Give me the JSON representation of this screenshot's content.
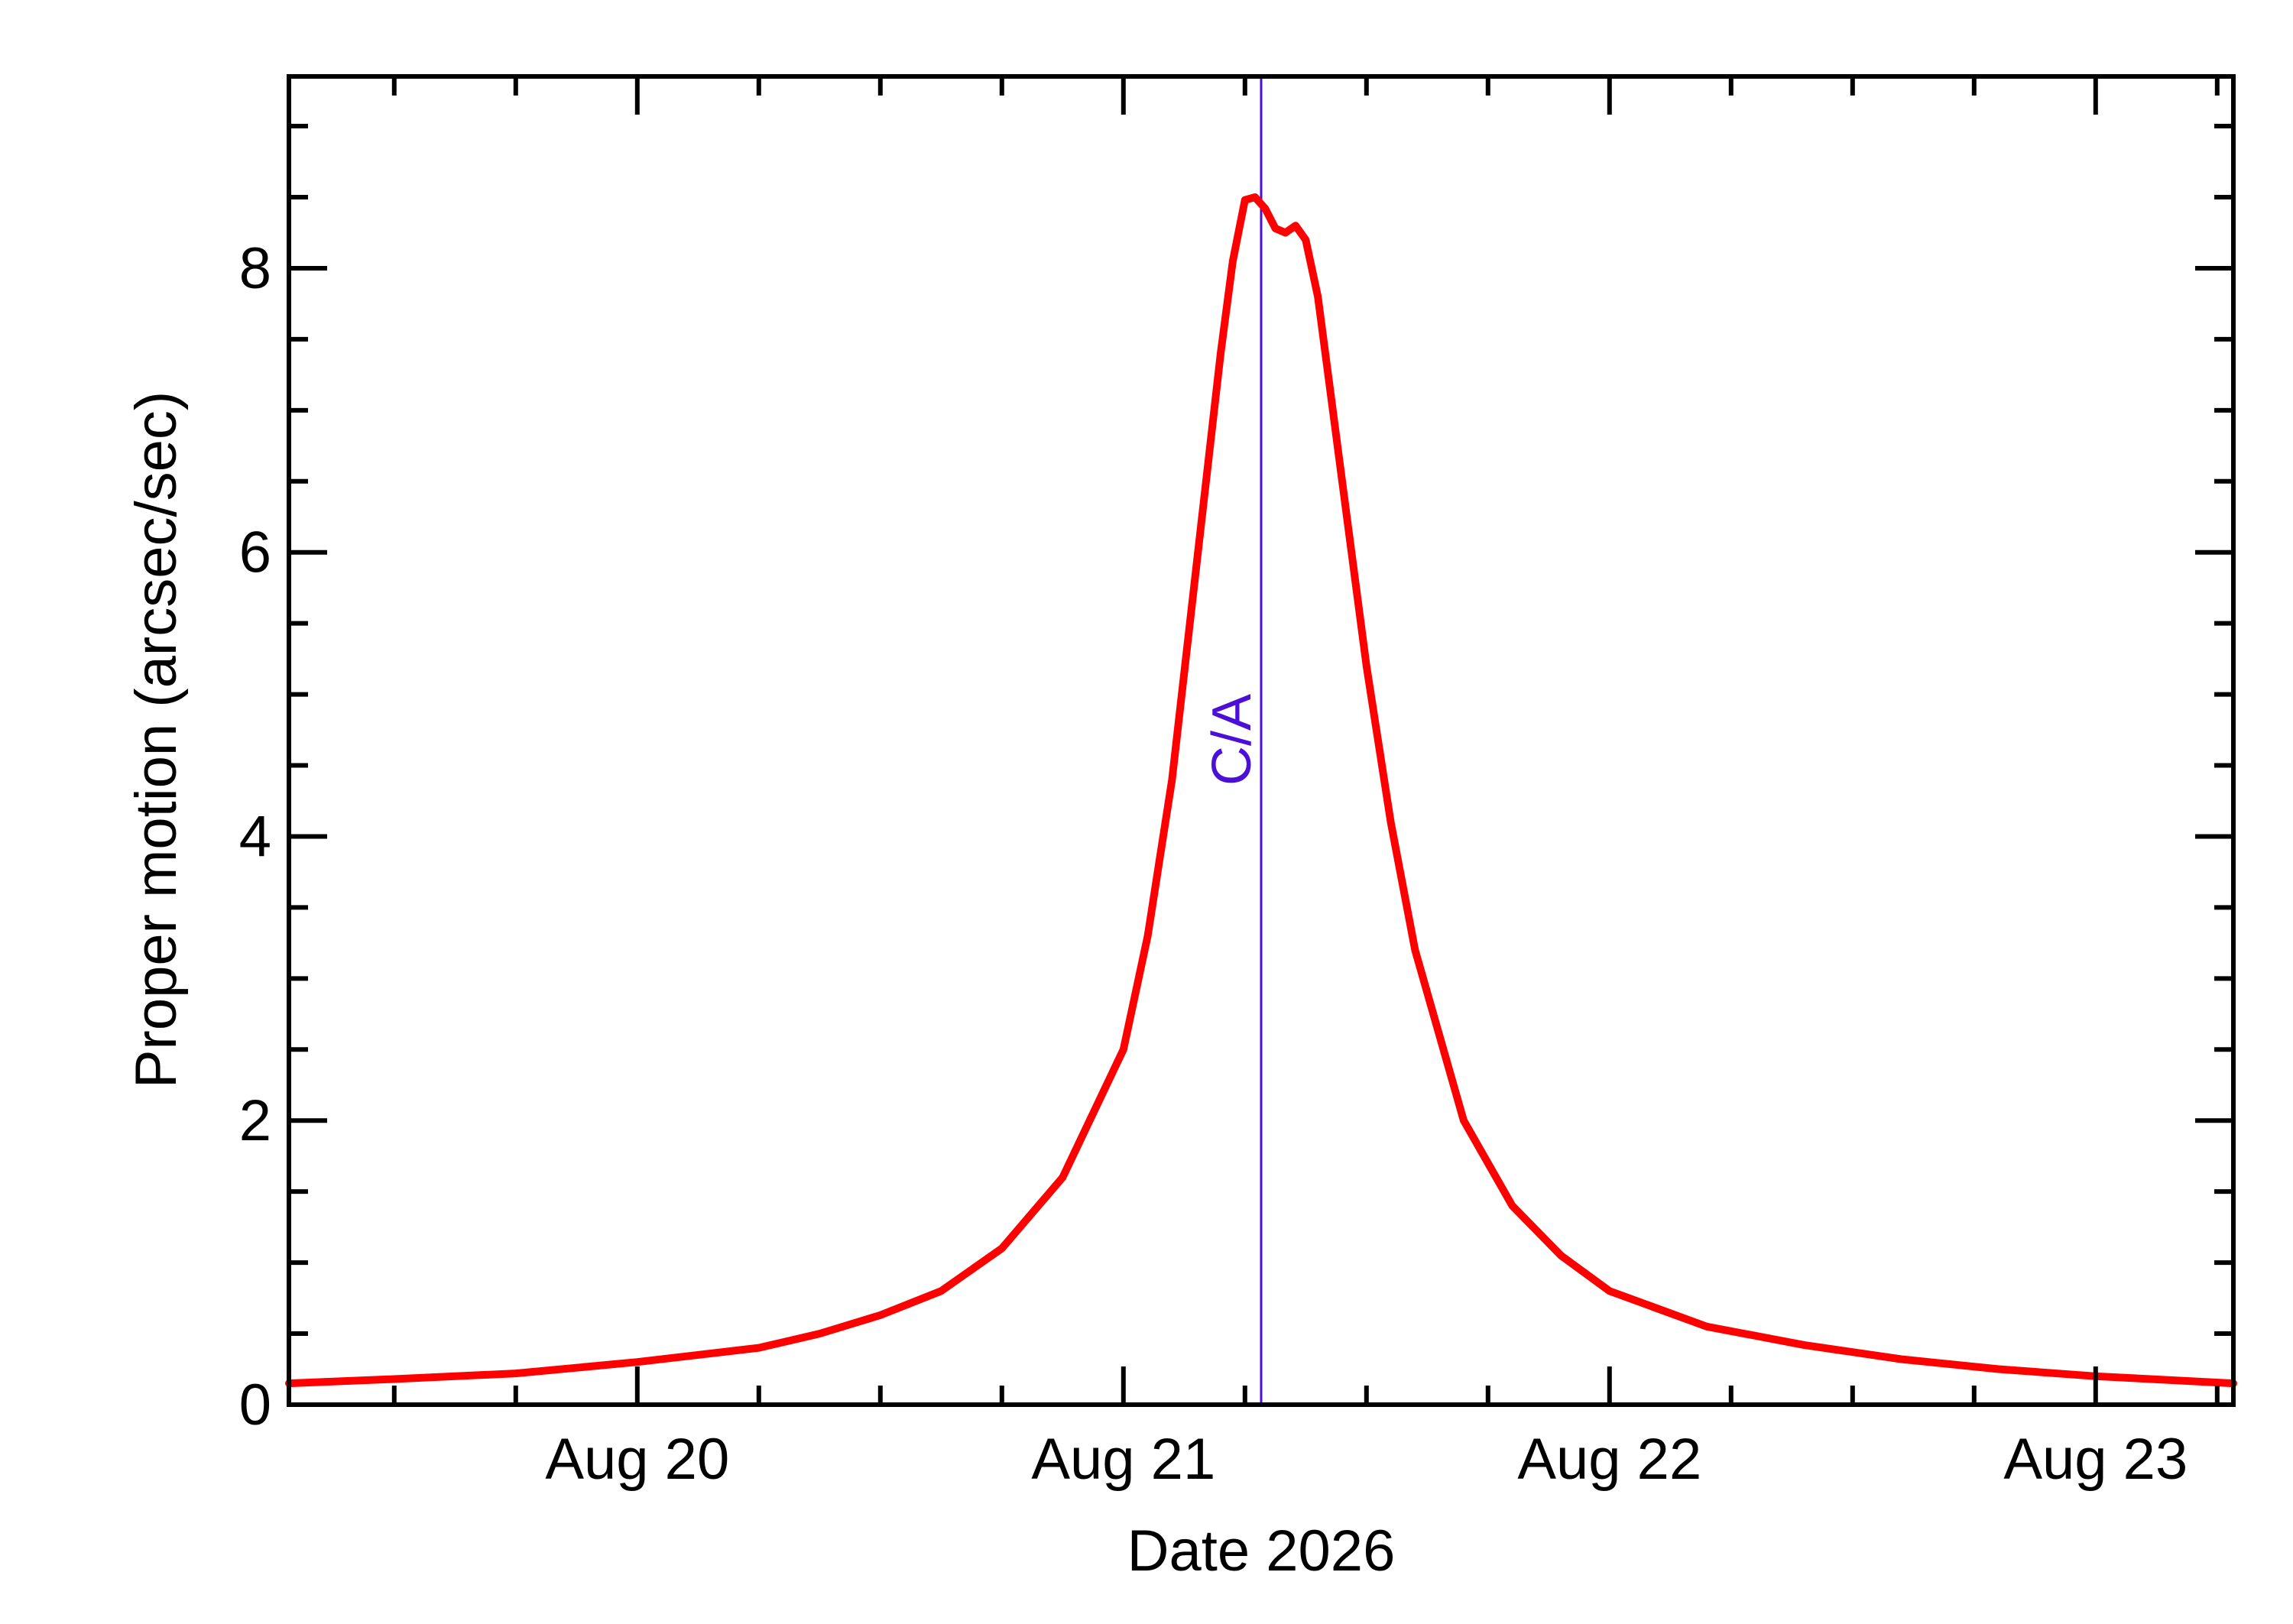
{
  "chart_data": {
    "type": "line",
    "xlabel": "Date 2026",
    "ylabel": "Proper motion (arcsec/sec)",
    "x_ticks": [
      {
        "label": "Aug 20",
        "value": "2026-08-20"
      },
      {
        "label": "Aug 21",
        "value": "2026-08-21"
      },
      {
        "label": "Aug 22",
        "value": "2026-08-22"
      },
      {
        "label": "Aug 23",
        "value": "2026-08-23"
      }
    ],
    "y_ticks": [
      "0",
      "2",
      "4",
      "6",
      "8"
    ],
    "xlim": [
      "2026-08-19T06:48",
      "2026-08-23T06:48"
    ],
    "ylim": [
      0,
      9.35
    ],
    "grid": false,
    "closest_approach": {
      "label": "C/A",
      "date": "2026-08-21T06:48",
      "color": "#4b0fd8"
    },
    "series": [
      {
        "color": "#ff0000",
        "points": [
          [
            "2026-08-19T06:48",
            0.15
          ],
          [
            "2026-08-19T12:00",
            0.18
          ],
          [
            "2026-08-19T18:00",
            0.22
          ],
          [
            "2026-08-20T00:00",
            0.3
          ],
          [
            "2026-08-20T06:00",
            0.4
          ],
          [
            "2026-08-20T09:00",
            0.5
          ],
          [
            "2026-08-20T12:00",
            0.63
          ],
          [
            "2026-08-20T15:00",
            0.8
          ],
          [
            "2026-08-20T18:00",
            1.1
          ],
          [
            "2026-08-20T21:00",
            1.6
          ],
          [
            "2026-08-21T00:00",
            2.5
          ],
          [
            "2026-08-21T01:12",
            3.3
          ],
          [
            "2026-08-21T02:24",
            4.4
          ],
          [
            "2026-08-21T03:36",
            5.9
          ],
          [
            "2026-08-21T04:48",
            7.4
          ],
          [
            "2026-08-21T05:24",
            8.05
          ],
          [
            "2026-08-21T06:00",
            8.48
          ],
          [
            "2026-08-21T06:30",
            8.5
          ],
          [
            "2026-08-21T07:00",
            8.42
          ],
          [
            "2026-08-21T07:30",
            8.28
          ],
          [
            "2026-08-21T08:00",
            8.25
          ],
          [
            "2026-08-21T08:30",
            8.3
          ],
          [
            "2026-08-21T09:00",
            8.2
          ],
          [
            "2026-08-21T09:36",
            7.8
          ],
          [
            "2026-08-21T10:48",
            6.5
          ],
          [
            "2026-08-21T12:00",
            5.2
          ],
          [
            "2026-08-21T13:12",
            4.1
          ],
          [
            "2026-08-21T14:24",
            3.2
          ],
          [
            "2026-08-21T16:48",
            2.0
          ],
          [
            "2026-08-21T19:12",
            1.4
          ],
          [
            "2026-08-21T21:36",
            1.05
          ],
          [
            "2026-08-22T00:00",
            0.8
          ],
          [
            "2026-08-22T04:48",
            0.55
          ],
          [
            "2026-08-22T09:36",
            0.42
          ],
          [
            "2026-08-22T14:24",
            0.32
          ],
          [
            "2026-08-22T19:12",
            0.25
          ],
          [
            "2026-08-23T00:00",
            0.2
          ],
          [
            "2026-08-23T06:48",
            0.15
          ]
        ]
      }
    ]
  }
}
